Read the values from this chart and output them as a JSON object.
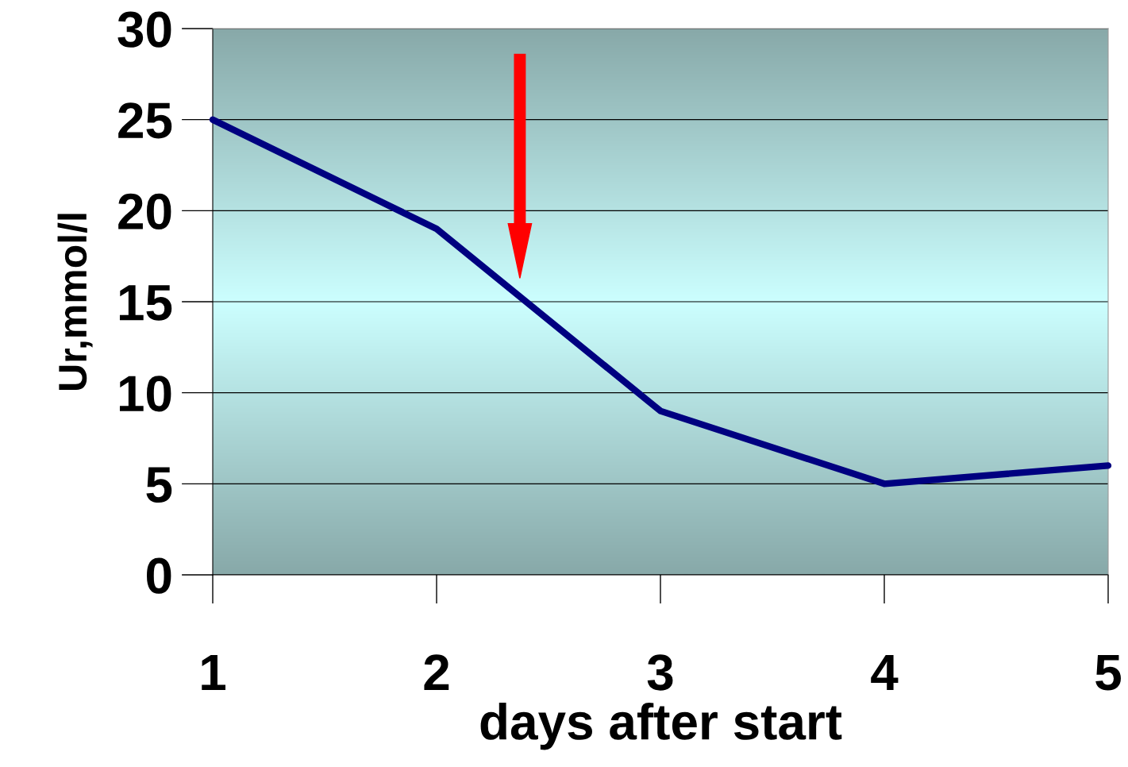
{
  "chart_data": {
    "type": "line",
    "xlabel": "days after start",
    "ylabel": "Ur,mmol/l",
    "x": [
      1,
      2,
      3,
      4,
      5
    ],
    "series": [
      {
        "color": "#000080",
        "values": [
          25,
          19,
          9,
          5,
          6
        ]
      }
    ],
    "xlim": [
      1,
      5
    ],
    "xticks": [
      1,
      2,
      3,
      4,
      5
    ],
    "ylim": [
      0,
      30
    ],
    "yticks": [
      0,
      5,
      10,
      15,
      20,
      25,
      30
    ],
    "grid": "y",
    "legend": false,
    "marker": "none",
    "line_style": "solid"
  }
}
